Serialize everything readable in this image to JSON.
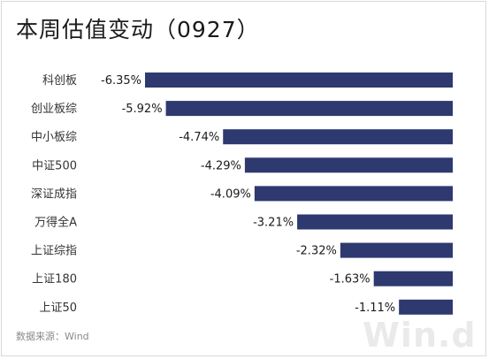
{
  "title": "本周估值变动（0927）",
  "source": "数据来源：Wind",
  "watermark": "Win.d",
  "colors": {
    "bar": "#2e3970",
    "text": "#1a1a1a",
    "category": "#333333"
  },
  "chart_data": {
    "type": "bar",
    "orientation": "horizontal",
    "title": "本周估值变动（0927）",
    "categories": [
      "科创板",
      "创业板综",
      "中小板综",
      "中证500",
      "深证成指",
      "万得全A",
      "上证综指",
      "上证180",
      "上证50"
    ],
    "values": [
      -6.35,
      -5.92,
      -4.74,
      -4.29,
      -4.09,
      -3.21,
      -2.32,
      -1.63,
      -1.11
    ],
    "labels": [
      "-6.35%",
      "-5.92%",
      "-4.74%",
      "-4.29%",
      "-4.09%",
      "-3.21%",
      "-2.32%",
      "-1.63%",
      "-1.11%"
    ],
    "xlim": [
      -6.35,
      0
    ],
    "grid": false,
    "legend": "none"
  }
}
